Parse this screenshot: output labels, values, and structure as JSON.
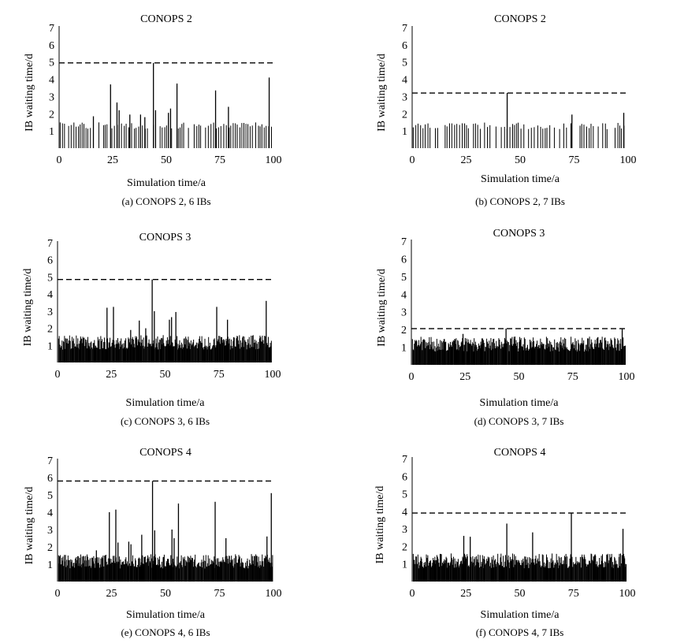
{
  "chart_data": [
    {
      "type": "bar",
      "title": "CONOPS 2",
      "caption": "(a) CONOPS 2, 6 IBs",
      "xlabel": "Simulation time/a",
      "ylabel": "IB waiting time/d",
      "xlim": [
        0,
        100
      ],
      "ylim": [
        0,
        7
      ],
      "xticks": [
        "0",
        "25",
        "50",
        "75",
        "100"
      ],
      "yticks": [
        "1",
        "2",
        "3",
        "4",
        "5",
        "6",
        "7"
      ],
      "reference_line": 4.95,
      "density": "sparse",
      "peaks": [
        [
          16,
          1.85
        ],
        [
          24,
          3.7
        ],
        [
          27,
          2.65
        ],
        [
          28,
          2.2
        ],
        [
          33,
          1.95
        ],
        [
          38,
          1.95
        ],
        [
          40,
          1.8
        ],
        [
          44,
          4.95
        ],
        [
          45,
          2.2
        ],
        [
          51,
          2.05
        ],
        [
          52,
          2.3
        ],
        [
          55,
          3.75
        ],
        [
          73,
          3.35
        ],
        [
          79,
          2.4
        ],
        [
          98,
          4.1
        ]
      ]
    },
    {
      "type": "bar",
      "title": "CONOPS 2",
      "caption": "(b) CONOPS 2, 7 IBs",
      "xlabel": "Simulation time/a",
      "ylabel": "IB waiting time/d",
      "xlim": [
        0,
        100
      ],
      "ylim": [
        0,
        7
      ],
      "xticks": [
        "0",
        "25",
        "50",
        "75",
        "100"
      ],
      "yticks": [
        "1",
        "2",
        "3",
        "4",
        "5",
        "6",
        "7"
      ],
      "reference_line": 3.2,
      "density": "sparse",
      "peaks": [
        [
          44,
          3.2
        ],
        [
          74,
          1.95
        ],
        [
          98,
          2.05
        ]
      ]
    },
    {
      "type": "bar",
      "title": "CONOPS 3",
      "caption": "(c) CONOPS 3, 6 IBs",
      "xlabel": "Simulation time/a",
      "ylabel": "IB waiting time/d",
      "xlim": [
        0,
        100
      ],
      "ylim": [
        0,
        7
      ],
      "xticks": [
        "0",
        "25",
        "50",
        "75",
        "100"
      ],
      "yticks": [
        "1",
        "2",
        "3",
        "4",
        "5",
        "6",
        "7"
      ],
      "reference_line": 4.85,
      "density": "dense",
      "peaks": [
        [
          23,
          3.2
        ],
        [
          26,
          3.25
        ],
        [
          34,
          1.9
        ],
        [
          38,
          2.45
        ],
        [
          41,
          2.0
        ],
        [
          44,
          4.85
        ],
        [
          45,
          3.0
        ],
        [
          52,
          2.5
        ],
        [
          53,
          2.65
        ],
        [
          55,
          2.95
        ],
        [
          74,
          3.25
        ],
        [
          79,
          2.5
        ],
        [
          97,
          3.6
        ]
      ]
    },
    {
      "type": "bar",
      "title": "CONOPS 3",
      "caption": "(d) CONOPS 3, 7 IBs",
      "xlabel": "Simulation time/a",
      "ylabel": "IB waiting time/d",
      "xlim": [
        0,
        100
      ],
      "ylim": [
        0,
        7
      ],
      "xticks": [
        "0",
        "25",
        "50",
        "75",
        "100"
      ],
      "yticks": [
        "1",
        "2",
        "3",
        "4",
        "5",
        "6",
        "7"
      ],
      "reference_line": 2.05,
      "density": "dense",
      "peaks": [
        [
          24,
          1.75
        ],
        [
          44,
          2.05
        ],
        [
          98,
          2.05
        ]
      ]
    },
    {
      "type": "bar",
      "title": "CONOPS 4",
      "caption": "(e) CONOPS 4, 6 IBs",
      "xlabel": "Simulation time/a",
      "ylabel": "IB waiting time/d",
      "xlim": [
        0,
        100
      ],
      "ylim": [
        0,
        7
      ],
      "xticks": [
        "0",
        "25",
        "50",
        "75",
        "100"
      ],
      "yticks": [
        "1",
        "2",
        "3",
        "4",
        "5",
        "6",
        "7"
      ],
      "reference_line": 5.8,
      "density": "dense",
      "peaks": [
        [
          18,
          1.8
        ],
        [
          24,
          4.0
        ],
        [
          27,
          4.15
        ],
        [
          28,
          2.25
        ],
        [
          33,
          2.3
        ],
        [
          34,
          2.15
        ],
        [
          39,
          2.7
        ],
        [
          44,
          5.8
        ],
        [
          45,
          2.95
        ],
        [
          53,
          3.0
        ],
        [
          54,
          2.5
        ],
        [
          56,
          4.5
        ],
        [
          73,
          4.6
        ],
        [
          78,
          2.5
        ],
        [
          97,
          2.6
        ],
        [
          99,
          5.1
        ]
      ]
    },
    {
      "type": "bar",
      "title": "CONOPS 4",
      "caption": "(f) CONOPS 4, 7 IBs",
      "xlabel": "Simulation time/a",
      "ylabel": "IB waiting time/d",
      "xlim": [
        0,
        100
      ],
      "ylim": [
        0,
        7
      ],
      "xticks": [
        "0",
        "25",
        "50",
        "75",
        "100"
      ],
      "yticks": [
        "1",
        "2",
        "3",
        "4",
        "5",
        "6",
        "7"
      ],
      "reference_line": 3.9,
      "density": "dense",
      "peaks": [
        [
          24,
          2.6
        ],
        [
          27,
          2.55
        ],
        [
          44,
          3.3
        ],
        [
          56,
          2.8
        ],
        [
          74,
          3.9
        ],
        [
          98,
          3.0
        ]
      ]
    }
  ]
}
